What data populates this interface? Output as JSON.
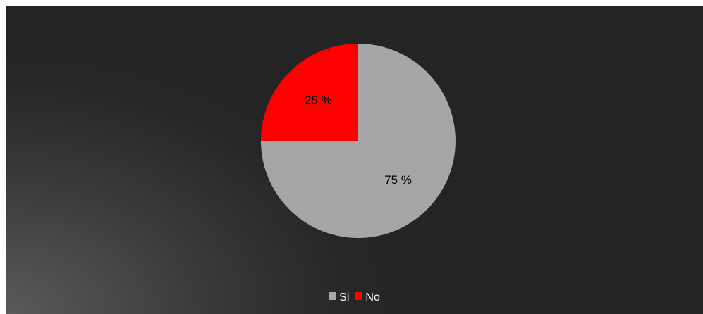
{
  "chart_data": {
    "type": "pie",
    "categories": [
      "Si",
      "No"
    ],
    "values": [
      75,
      25
    ],
    "data_labels": [
      "75 %",
      "25 %"
    ],
    "colors": [
      "#a6a6a6",
      "#ff0000"
    ],
    "legend_position": "bottom",
    "background": "#262626"
  },
  "legend": {
    "items": [
      {
        "label": "Si",
        "color": "#a6a6a6"
      },
      {
        "label": "No",
        "color": "#ff0000"
      }
    ]
  }
}
